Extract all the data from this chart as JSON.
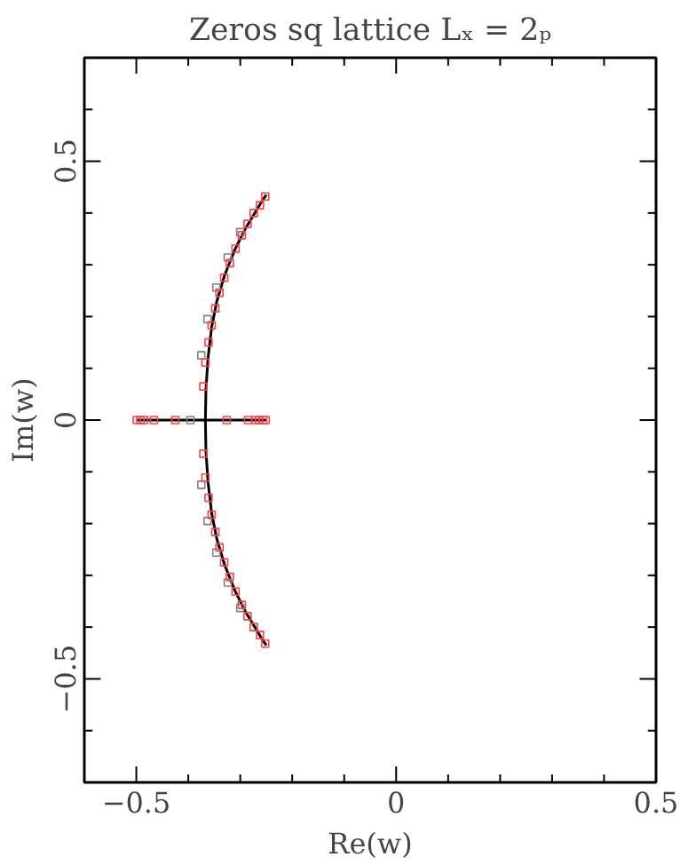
{
  "chart_data": {
    "type": "scatter",
    "title": "Zeros sq lattice Lₓ = 2ₚ",
    "xlabel": "Re(w)",
    "ylabel": "Im(w)",
    "xlim": [
      -0.6,
      0.5
    ],
    "ylim": [
      -0.7,
      0.7
    ],
    "xticks": [
      -0.5,
      {
        "value": -0.4,
        "label": null
      },
      {
        "value": -0.3,
        "label": null
      },
      {
        "value": -0.2,
        "label": null
      },
      {
        "value": -0.1,
        "label": null
      },
      0,
      {
        "value": 0.1,
        "label": null
      },
      {
        "value": 0.2,
        "label": null
      },
      {
        "value": 0.3,
        "label": null
      },
      {
        "value": 0.4,
        "label": null
      },
      0.5
    ],
    "yticks": [
      {
        "value": -0.6,
        "label": null
      },
      -0.5,
      {
        "value": -0.4,
        "label": null
      },
      {
        "value": -0.3,
        "label": null
      },
      {
        "value": -0.2,
        "label": null
      },
      {
        "value": -0.1,
        "label": null
      },
      0,
      {
        "value": 0.1,
        "label": null
      },
      {
        "value": 0.2,
        "label": null
      },
      {
        "value": 0.3,
        "label": null
      },
      {
        "value": 0.4,
        "label": null
      },
      0.5,
      {
        "value": 0.6,
        "label": null
      }
    ],
    "grid": false,
    "series": [
      {
        "type": "line",
        "color": "#000000",
        "marker": "none",
        "x": [
          -0.25,
          -0.26,
          -0.275,
          -0.29,
          -0.31,
          -0.33,
          -0.345,
          -0.355,
          -0.362,
          -0.366,
          -0.367,
          -0.366,
          -0.362,
          -0.355,
          -0.345,
          -0.33,
          -0.31,
          -0.29,
          -0.275,
          -0.26,
          -0.25
        ],
        "values": [
          0.435,
          0.42,
          0.395,
          0.37,
          0.33,
          0.28,
          0.23,
          0.18,
          0.12,
          0.06,
          0,
          -0.06,
          -0.12,
          -0.18,
          -0.23,
          -0.28,
          -0.33,
          -0.37,
          -0.395,
          -0.42,
          -0.435
        ]
      },
      {
        "type": "line",
        "color": "#000000",
        "marker": "none",
        "x": [
          -0.5,
          -0.25
        ],
        "values": [
          0,
          0
        ]
      },
      {
        "color": "#808080",
        "marker": "square",
        "x": [
          -0.3,
          -0.324,
          -0.346,
          -0.363,
          -0.375,
          -0.396,
          -0.3,
          -0.324,
          -0.346,
          -0.363,
          -0.375
        ],
        "values": [
          0.363,
          0.314,
          0.256,
          0.195,
          0.125,
          0,
          -0.363,
          -0.314,
          -0.256,
          -0.195,
          -0.125
        ]
      },
      {
        "color": "#ff4040",
        "marker": "square",
        "x": [
          -0.252,
          -0.262,
          -0.274,
          -0.286,
          -0.297,
          -0.309,
          -0.32,
          -0.331,
          -0.34,
          -0.348,
          -0.355,
          -0.361,
          -0.367,
          -0.371,
          -0.252,
          -0.262,
          -0.274,
          -0.286,
          -0.297,
          -0.309,
          -0.32,
          -0.331,
          -0.34,
          -0.348,
          -0.355,
          -0.361,
          -0.367,
          -0.371,
          -0.499,
          -0.492,
          -0.485,
          -0.466,
          -0.425,
          -0.326,
          -0.285,
          -0.271,
          -0.264,
          -0.256,
          -0.251
        ],
        "values": [
          0.432,
          0.415,
          0.4,
          0.379,
          0.357,
          0.331,
          0.303,
          0.275,
          0.246,
          0.216,
          0.183,
          0.15,
          0.111,
          0.065,
          -0.432,
          -0.415,
          -0.4,
          -0.379,
          -0.357,
          -0.331,
          -0.303,
          -0.275,
          -0.246,
          -0.216,
          -0.183,
          -0.15,
          -0.111,
          -0.065,
          0,
          0,
          0,
          0,
          0,
          0,
          0,
          0,
          0,
          0,
          0
        ]
      }
    ]
  }
}
